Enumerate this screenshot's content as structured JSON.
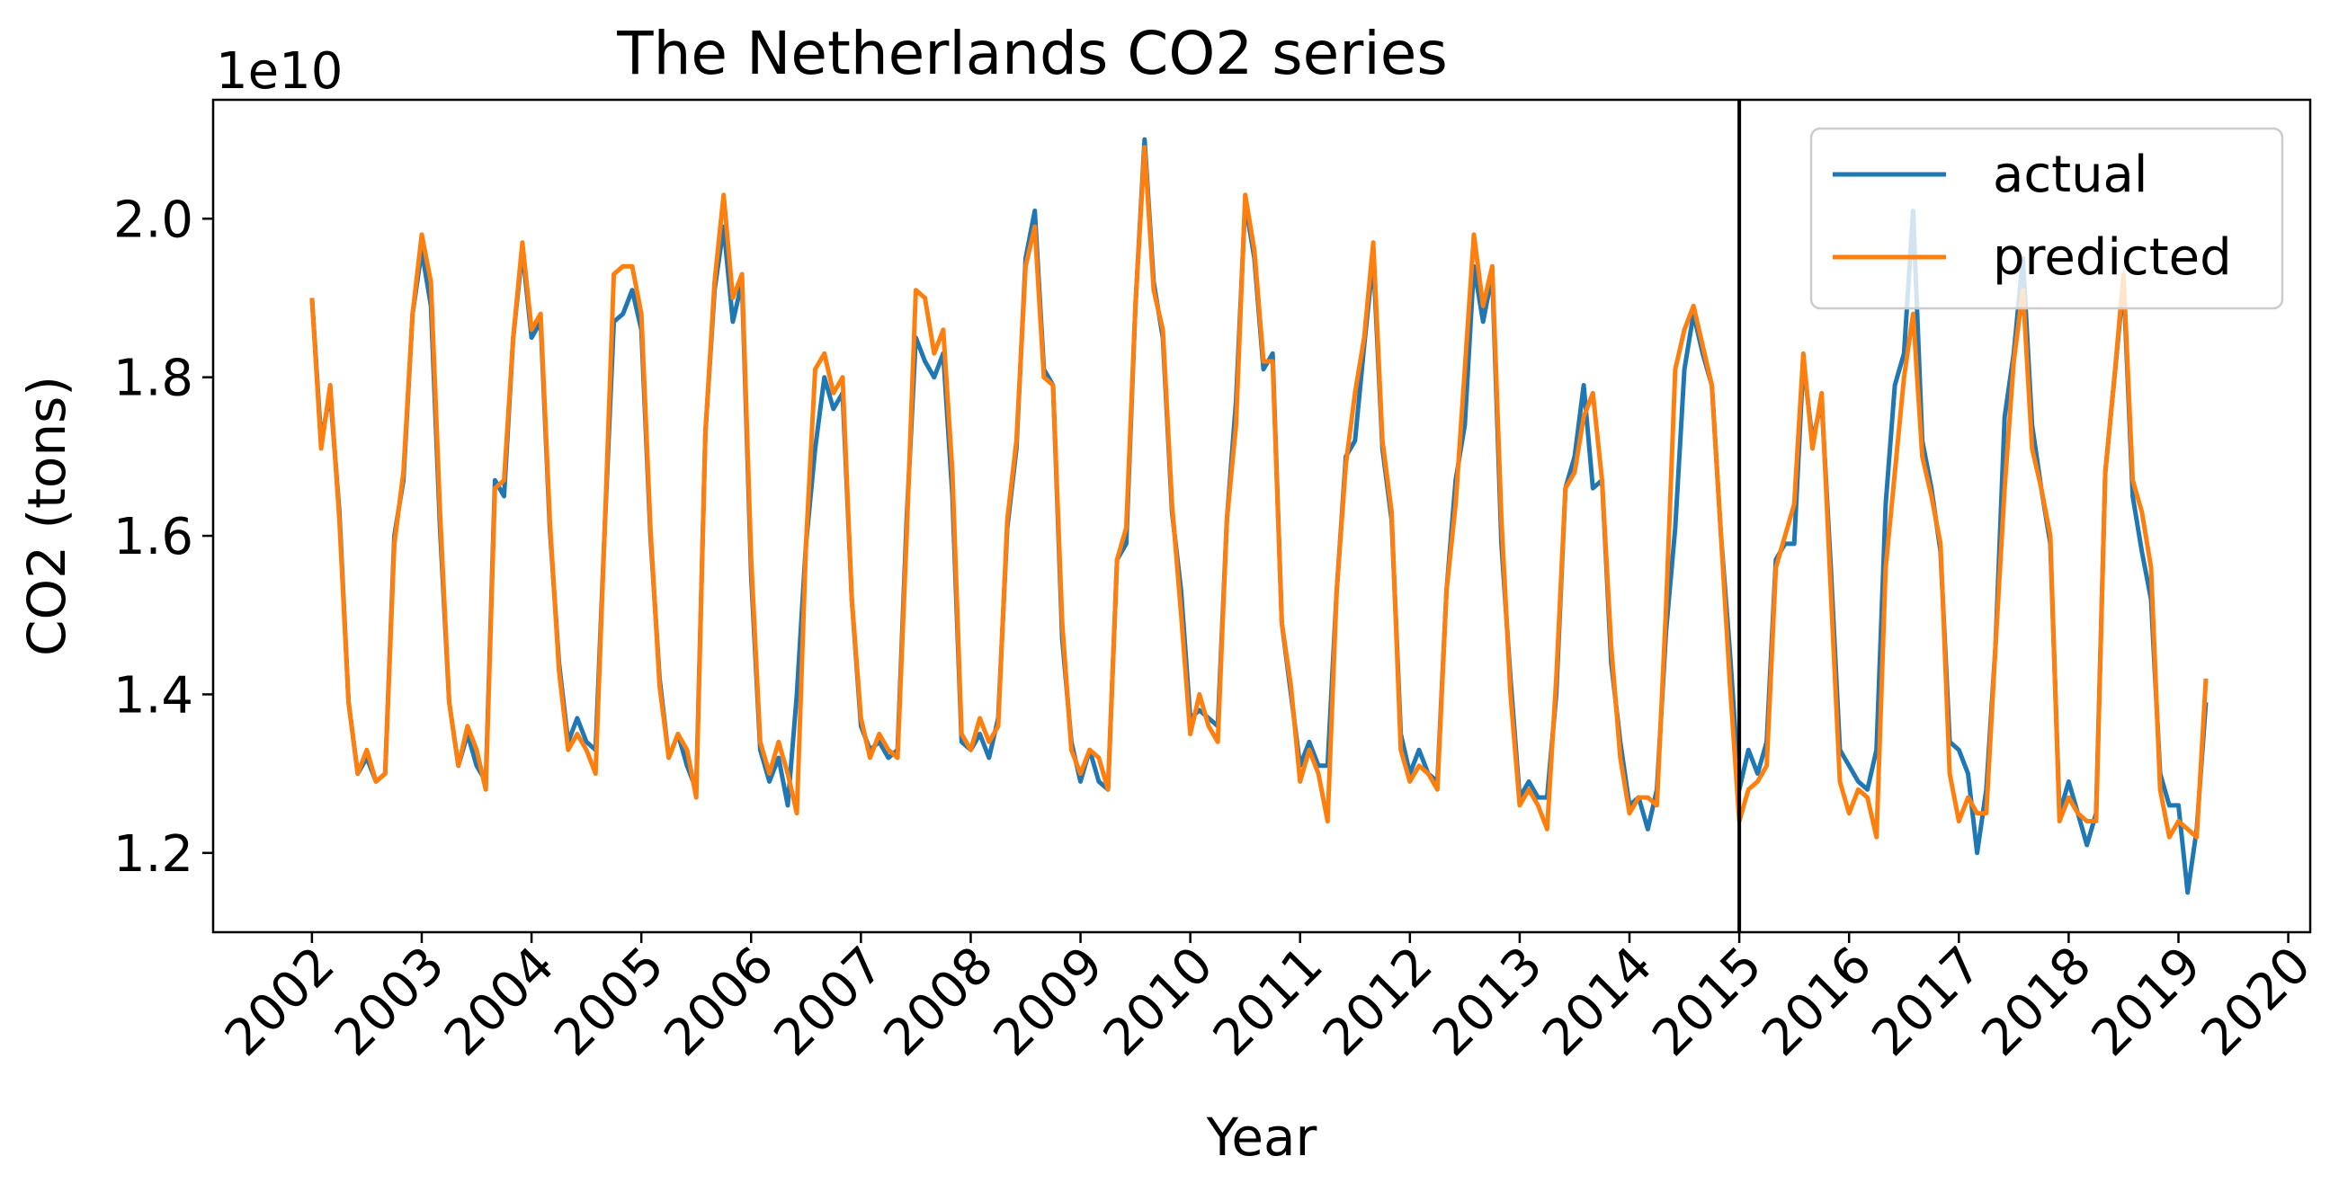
{
  "chart_data": {
    "type": "line",
    "title": "The Netherlands  CO2 series",
    "xlabel": "Year",
    "ylabel": "CO2 (tons)",
    "y_offset_label": "1e10",
    "y_scale": 10000000000,
    "xlim": [
      2001.1,
      2020.2
    ],
    "ylim": [
      1.1,
      2.15
    ],
    "x_ticks": [
      2002,
      2003,
      2004,
      2005,
      2006,
      2007,
      2008,
      2009,
      2010,
      2011,
      2012,
      2013,
      2014,
      2015,
      2016,
      2017,
      2018,
      2019,
      2020
    ],
    "x_tick_labels": [
      "2002",
      "2003",
      "2004",
      "2005",
      "2006",
      "2007",
      "2008",
      "2009",
      "2010",
      "2011",
      "2012",
      "2013",
      "2014",
      "2015",
      "2016",
      "2017",
      "2018",
      "2019",
      "2020"
    ],
    "y_ticks": [
      1.2,
      1.4,
      1.6,
      1.8,
      2.0
    ],
    "y_tick_labels": [
      "1.2",
      "1.4",
      "1.6",
      "1.8",
      "2.0"
    ],
    "vertical_line_x": 2015,
    "start": 2002,
    "step": 0.08333333,
    "legend_position": "top-right",
    "grid": false,
    "series": [
      {
        "name": "actual",
        "color": "#1f77b4",
        "values": [
          1.9,
          1.72,
          1.78,
          1.63,
          1.39,
          1.3,
          1.32,
          1.29,
          1.3,
          1.6,
          1.67,
          1.88,
          1.96,
          1.89,
          1.61,
          1.39,
          1.31,
          1.35,
          1.31,
          1.29,
          1.67,
          1.65,
          1.85,
          1.96,
          1.85,
          1.87,
          1.61,
          1.44,
          1.34,
          1.37,
          1.34,
          1.33,
          1.61,
          1.87,
          1.88,
          1.91,
          1.86,
          1.6,
          1.42,
          1.32,
          1.35,
          1.31,
          1.28,
          1.73,
          1.91,
          1.99,
          1.87,
          1.92,
          1.55,
          1.33,
          1.29,
          1.32,
          1.26,
          1.4,
          1.59,
          1.71,
          1.8,
          1.76,
          1.78,
          1.52,
          1.36,
          1.33,
          1.34,
          1.32,
          1.33,
          1.62,
          1.85,
          1.82,
          1.8,
          1.83,
          1.65,
          1.34,
          1.33,
          1.35,
          1.32,
          1.37,
          1.61,
          1.71,
          1.95,
          2.01,
          1.81,
          1.79,
          1.47,
          1.34,
          1.29,
          1.33,
          1.29,
          1.28,
          1.57,
          1.59,
          1.89,
          2.1,
          1.92,
          1.85,
          1.63,
          1.53,
          1.37,
          1.38,
          1.37,
          1.36,
          1.62,
          1.77,
          2.02,
          1.95,
          1.81,
          1.83,
          1.49,
          1.4,
          1.31,
          1.34,
          1.31,
          1.31,
          1.53,
          1.7,
          1.72,
          1.84,
          1.95,
          1.71,
          1.62,
          1.35,
          1.3,
          1.33,
          1.3,
          1.29,
          1.53,
          1.67,
          1.74,
          1.94,
          1.87,
          1.93,
          1.59,
          1.42,
          1.27,
          1.29,
          1.27,
          1.27,
          1.4,
          1.66,
          1.7,
          1.79,
          1.66,
          1.67,
          1.44,
          1.34,
          1.26,
          1.27,
          1.23,
          1.28,
          1.48,
          1.61,
          1.81,
          1.88,
          1.83,
          1.79,
          1.6,
          1.45,
          1.28,
          1.33,
          1.3,
          1.34,
          1.57,
          1.59,
          1.59,
          1.82,
          1.72,
          1.77,
          1.56,
          1.33,
          1.31,
          1.29,
          1.28,
          1.33,
          1.64,
          1.79,
          1.83,
          2.01,
          1.72,
          1.66,
          1.58,
          1.34,
          1.33,
          1.3,
          1.2,
          1.28,
          1.46,
          1.75,
          1.83,
          1.95,
          1.74,
          1.66,
          1.59,
          1.25,
          1.29,
          1.25,
          1.21,
          1.25,
          1.68,
          1.8,
          1.92,
          1.65,
          1.58,
          1.52,
          1.3,
          1.26,
          1.26,
          1.15,
          1.23,
          1.39
        ]
      },
      {
        "name": "predicted",
        "color": "#ff7f0e",
        "values": [
          1.9,
          1.71,
          1.79,
          1.62,
          1.39,
          1.3,
          1.33,
          1.29,
          1.3,
          1.59,
          1.68,
          1.88,
          1.98,
          1.92,
          1.63,
          1.39,
          1.31,
          1.36,
          1.33,
          1.28,
          1.66,
          1.67,
          1.85,
          1.97,
          1.86,
          1.88,
          1.62,
          1.43,
          1.33,
          1.35,
          1.33,
          1.3,
          1.61,
          1.93,
          1.94,
          1.94,
          1.88,
          1.61,
          1.41,
          1.32,
          1.35,
          1.33,
          1.27,
          1.73,
          1.92,
          2.03,
          1.9,
          1.93,
          1.57,
          1.34,
          1.3,
          1.34,
          1.3,
          1.25,
          1.59,
          1.81,
          1.83,
          1.78,
          1.8,
          1.52,
          1.37,
          1.32,
          1.35,
          1.33,
          1.32,
          1.6,
          1.91,
          1.9,
          1.83,
          1.86,
          1.68,
          1.35,
          1.33,
          1.37,
          1.34,
          1.36,
          1.62,
          1.72,
          1.94,
          1.99,
          1.8,
          1.79,
          1.49,
          1.33,
          1.3,
          1.33,
          1.32,
          1.28,
          1.57,
          1.61,
          1.89,
          2.09,
          1.91,
          1.86,
          1.64,
          1.5,
          1.35,
          1.4,
          1.36,
          1.34,
          1.62,
          1.74,
          2.03,
          1.96,
          1.82,
          1.82,
          1.49,
          1.41,
          1.29,
          1.33,
          1.3,
          1.24,
          1.53,
          1.69,
          1.78,
          1.85,
          1.97,
          1.72,
          1.63,
          1.33,
          1.29,
          1.31,
          1.3,
          1.28,
          1.53,
          1.64,
          1.81,
          1.98,
          1.89,
          1.94,
          1.62,
          1.4,
          1.26,
          1.28,
          1.26,
          1.23,
          1.42,
          1.66,
          1.68,
          1.75,
          1.78,
          1.67,
          1.46,
          1.32,
          1.25,
          1.27,
          1.27,
          1.26,
          1.51,
          1.81,
          1.86,
          1.89,
          1.84,
          1.79,
          1.6,
          1.41,
          1.24,
          1.28,
          1.29,
          1.31,
          1.56,
          1.6,
          1.64,
          1.83,
          1.71,
          1.78,
          1.53,
          1.29,
          1.25,
          1.28,
          1.27,
          1.22,
          1.56,
          1.68,
          1.8,
          1.88,
          1.7,
          1.65,
          1.59,
          1.3,
          1.24,
          1.27,
          1.25,
          1.25,
          1.46,
          1.66,
          1.82,
          1.91,
          1.71,
          1.66,
          1.6,
          1.24,
          1.27,
          1.25,
          1.24,
          1.24,
          1.68,
          1.8,
          1.93,
          1.67,
          1.63,
          1.56,
          1.28,
          1.22,
          1.24,
          1.23,
          1.22,
          1.42
        ]
      }
    ]
  }
}
